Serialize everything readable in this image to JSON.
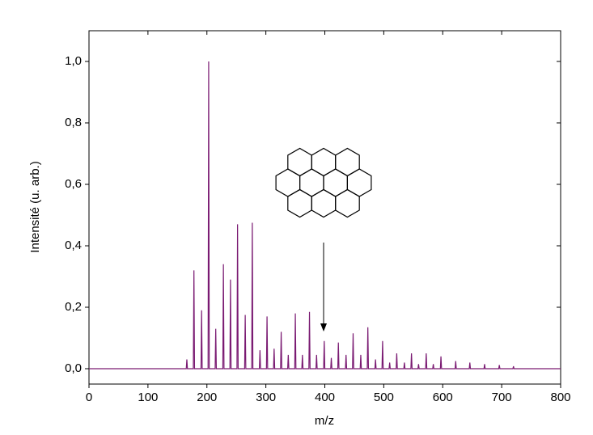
{
  "chart_data": {
    "type": "line",
    "x_label": "m/z",
    "y_label": "Intensité (u. arb.)",
    "xlim": [
      0,
      800
    ],
    "xticks": [
      0,
      100,
      200,
      300,
      400,
      500,
      600,
      700,
      800
    ],
    "ylim": [
      -0.05,
      1.1
    ],
    "yticks": [
      {
        "value": 0,
        "label": "0,0"
      },
      {
        "value": 0.2,
        "label": "0,2"
      },
      {
        "value": 0.4,
        "label": "0,4"
      },
      {
        "value": 0.6,
        "label": "0,6"
      },
      {
        "value": 0.8,
        "label": "0,8"
      },
      {
        "value": 1.0,
        "label": "1,0"
      }
    ],
    "color": "#7a1a72",
    "x": [
      0,
      165,
      166,
      167,
      177,
      178,
      179,
      190,
      191,
      192,
      202,
      203,
      204,
      214,
      215,
      216,
      227,
      228,
      229,
      239,
      240,
      241,
      251,
      252,
      253,
      264,
      265,
      266,
      276,
      277,
      278,
      289,
      290,
      291,
      301,
      302,
      303,
      313,
      314,
      315,
      325,
      326,
      327,
      337,
      338,
      339,
      349,
      350,
      351,
      361,
      362,
      363,
      373,
      374,
      375,
      385,
      386,
      387,
      398,
      399,
      400,
      410,
      411,
      412,
      422,
      423,
      424,
      435,
      436,
      437,
      447,
      448,
      449,
      460,
      461,
      462,
      472,
      473,
      474,
      485,
      486,
      487,
      497,
      498,
      499,
      509,
      510,
      511,
      521,
      522,
      523,
      534,
      535,
      536,
      546,
      547,
      548,
      558,
      559,
      560,
      571,
      572,
      573,
      583,
      584,
      585,
      596,
      597,
      598,
      621,
      622,
      623,
      645,
      646,
      647,
      670,
      671,
      672,
      695,
      696,
      697,
      719,
      720,
      721,
      800
    ],
    "values": [
      0,
      0,
      0.03,
      0,
      0,
      0.32,
      0,
      0,
      0.19,
      0,
      0,
      1.0,
      0,
      0,
      0.13,
      0,
      0,
      0.34,
      0,
      0,
      0.29,
      0,
      0,
      0.47,
      0,
      0,
      0.175,
      0,
      0,
      0.475,
      0,
      0,
      0.06,
      0,
      0,
      0.17,
      0,
      0,
      0.065,
      0,
      0,
      0.12,
      0,
      0,
      0.045,
      0,
      0,
      0.18,
      0,
      0,
      0.045,
      0,
      0,
      0.185,
      0,
      0,
      0.045,
      0,
      0,
      0.09,
      0,
      0,
      0.035,
      0,
      0,
      0.085,
      0,
      0,
      0.045,
      0,
      0,
      0.115,
      0,
      0,
      0.045,
      0,
      0,
      0.135,
      0,
      0,
      0.03,
      0,
      0,
      0.09,
      0,
      0,
      0.02,
      0,
      0,
      0.05,
      0,
      0,
      0.02,
      0,
      0,
      0.05,
      0,
      0,
      0.015,
      0,
      0,
      0.05,
      0,
      0,
      0.015,
      0,
      0,
      0.04,
      0,
      0,
      0.025,
      0,
      0,
      0.02,
      0,
      0,
      0.015,
      0,
      0,
      0.012,
      0,
      0,
      0.008,
      0,
      0
    ]
  }
}
